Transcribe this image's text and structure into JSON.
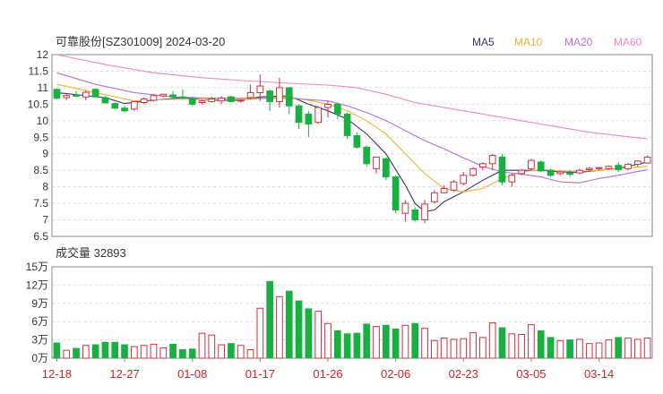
{
  "title": "可靠股份[SZ301009] 2024-03-20",
  "volume_label": "成交量 32893",
  "legend": [
    {
      "name": "MA5",
      "color": "#333366"
    },
    {
      "name": "MA10",
      "color": "#f0b030"
    },
    {
      "name": "MA20",
      "color": "#b070e0"
    },
    {
      "name": "MA60",
      "color": "#ee88c0"
    }
  ],
  "colors": {
    "up": "#d03040",
    "down": "#18b040",
    "grid": "#dcdcdc",
    "axis": "#888888"
  },
  "chart_data": [
    {
      "type": "candlestick",
      "ylim": [
        6.5,
        12
      ],
      "yticks": [
        "12",
        "11.5",
        "11",
        "10.5",
        "10",
        "9.5",
        "9",
        "8.5",
        "8",
        "7.5",
        "7",
        "6.5"
      ],
      "xticks": [
        {
          "index": 0,
          "label": "12-18"
        },
        {
          "index": 7,
          "label": "12-27"
        },
        {
          "index": 14,
          "label": "01-08"
        },
        {
          "index": 21,
          "label": "01-17"
        },
        {
          "index": 28,
          "label": "01-26"
        },
        {
          "index": 35,
          "label": "02-06"
        },
        {
          "index": 42,
          "label": "02-23"
        },
        {
          "index": 49,
          "label": "03-05"
        },
        {
          "index": 56,
          "label": "03-14"
        }
      ],
      "ohlc": [
        [
          10.95,
          10.98,
          10.65,
          10.68
        ],
        [
          10.7,
          10.82,
          10.62,
          10.76
        ],
        [
          10.78,
          10.9,
          10.72,
          10.74
        ],
        [
          10.72,
          10.92,
          10.62,
          10.86
        ],
        [
          10.95,
          10.98,
          10.7,
          10.72
        ],
        [
          10.7,
          10.75,
          10.52,
          10.54
        ],
        [
          10.52,
          10.56,
          10.35,
          10.38
        ],
        [
          10.38,
          10.45,
          10.25,
          10.3
        ],
        [
          10.35,
          10.6,
          10.3,
          10.58
        ],
        [
          10.55,
          10.7,
          10.5,
          10.66
        ],
        [
          10.62,
          10.8,
          10.58,
          10.76
        ],
        [
          10.75,
          10.82,
          10.7,
          10.8
        ],
        [
          10.78,
          10.9,
          10.66,
          10.72
        ],
        [
          10.72,
          10.95,
          10.65,
          10.68
        ],
        [
          10.68,
          10.72,
          10.45,
          10.5
        ],
        [
          10.55,
          10.64,
          10.5,
          10.6
        ],
        [
          10.58,
          10.72,
          10.55,
          10.66
        ],
        [
          10.6,
          10.75,
          10.5,
          10.68
        ],
        [
          10.72,
          10.76,
          10.55,
          10.58
        ],
        [
          10.6,
          10.65,
          10.55,
          10.62
        ],
        [
          10.7,
          11.1,
          10.65,
          10.85
        ],
        [
          10.85,
          11.4,
          10.6,
          11.05
        ],
        [
          10.9,
          10.95,
          10.3,
          10.58
        ],
        [
          10.58,
          11.3,
          10.4,
          11.0
        ],
        [
          11.0,
          11.02,
          10.2,
          10.45
        ],
        [
          10.45,
          10.5,
          9.75,
          9.95
        ],
        [
          10.2,
          10.3,
          9.5,
          9.9
        ],
        [
          9.95,
          10.45,
          9.9,
          10.4
        ],
        [
          10.4,
          10.6,
          10.1,
          10.5
        ],
        [
          10.5,
          10.55,
          10.05,
          10.2
        ],
        [
          10.2,
          10.25,
          9.45,
          9.55
        ],
        [
          9.55,
          9.65,
          9.15,
          9.2
        ],
        [
          9.2,
          9.25,
          8.62,
          8.7
        ],
        [
          8.55,
          8.9,
          8.4,
          8.9
        ],
        [
          8.85,
          8.9,
          8.2,
          8.3
        ],
        [
          8.3,
          8.35,
          7.2,
          7.3
        ],
        [
          7.2,
          7.6,
          6.95,
          7.5
        ],
        [
          7.3,
          7.38,
          6.95,
          7.0
        ],
        [
          7.0,
          7.6,
          6.9,
          7.48
        ],
        [
          7.55,
          7.9,
          7.5,
          7.82
        ],
        [
          7.82,
          8.05,
          7.8,
          7.95
        ],
        [
          7.9,
          8.2,
          7.85,
          8.15
        ],
        [
          8.1,
          8.45,
          8.05,
          8.35
        ],
        [
          8.35,
          8.6,
          8.3,
          8.55
        ],
        [
          8.6,
          8.75,
          8.5,
          8.7
        ],
        [
          8.7,
          9.0,
          8.5,
          8.95
        ],
        [
          8.9,
          9.0,
          8.05,
          8.15
        ],
        [
          8.15,
          8.4,
          8.0,
          8.35
        ],
        [
          8.4,
          8.55,
          8.35,
          8.5
        ],
        [
          8.55,
          8.85,
          8.5,
          8.8
        ],
        [
          8.75,
          8.8,
          8.45,
          8.48
        ],
        [
          8.5,
          8.55,
          8.3,
          8.35
        ],
        [
          8.4,
          8.5,
          8.35,
          8.45
        ],
        [
          8.42,
          8.5,
          8.3,
          8.38
        ],
        [
          8.42,
          8.55,
          8.38,
          8.5
        ],
        [
          8.52,
          8.6,
          8.48,
          8.56
        ],
        [
          8.55,
          8.6,
          8.5,
          8.58
        ],
        [
          8.55,
          8.65,
          8.52,
          8.62
        ],
        [
          8.65,
          8.75,
          8.45,
          8.52
        ],
        [
          8.55,
          8.72,
          8.5,
          8.68
        ],
        [
          8.68,
          8.8,
          8.6,
          8.78
        ],
        [
          8.72,
          8.95,
          8.7,
          8.9
        ]
      ],
      "ma": {
        "MA5": [
          [
            0,
            10.85
          ],
          [
            5,
            10.7
          ],
          [
            7,
            10.52
          ],
          [
            10,
            10.62
          ],
          [
            13,
            10.7
          ],
          [
            16,
            10.62
          ],
          [
            19,
            10.62
          ],
          [
            21,
            10.72
          ],
          [
            24,
            10.75
          ],
          [
            26,
            10.5
          ],
          [
            28,
            10.3
          ],
          [
            30,
            10.05
          ],
          [
            32,
            9.6
          ],
          [
            34,
            9.0
          ],
          [
            36,
            8.05
          ],
          [
            37,
            7.5
          ],
          [
            38,
            7.25
          ],
          [
            39,
            7.3
          ],
          [
            40,
            7.55
          ],
          [
            42,
            7.85
          ],
          [
            44,
            8.2
          ],
          [
            46,
            8.5
          ],
          [
            48,
            8.5
          ],
          [
            50,
            8.5
          ],
          [
            52,
            8.45
          ],
          [
            54,
            8.44
          ],
          [
            56,
            8.5
          ],
          [
            58,
            8.56
          ],
          [
            61,
            8.75
          ]
        ],
        "MA10": [
          [
            0,
            11.1
          ],
          [
            4,
            10.85
          ],
          [
            8,
            10.6
          ],
          [
            12,
            10.65
          ],
          [
            16,
            10.64
          ],
          [
            20,
            10.65
          ],
          [
            24,
            10.72
          ],
          [
            26,
            10.62
          ],
          [
            28,
            10.5
          ],
          [
            30,
            10.3
          ],
          [
            32,
            10.0
          ],
          [
            34,
            9.6
          ],
          [
            36,
            9.0
          ],
          [
            38,
            8.4
          ],
          [
            40,
            7.95
          ],
          [
            42,
            7.85
          ],
          [
            44,
            7.95
          ],
          [
            46,
            8.25
          ],
          [
            48,
            8.45
          ],
          [
            50,
            8.52
          ],
          [
            52,
            8.48
          ],
          [
            54,
            8.47
          ],
          [
            56,
            8.5
          ],
          [
            58,
            8.55
          ],
          [
            61,
            8.62
          ]
        ],
        "MA20": [
          [
            0,
            11.45
          ],
          [
            4,
            11.1
          ],
          [
            8,
            10.85
          ],
          [
            12,
            10.72
          ],
          [
            16,
            10.68
          ],
          [
            20,
            10.68
          ],
          [
            24,
            10.68
          ],
          [
            28,
            10.6
          ],
          [
            30,
            10.45
          ],
          [
            32,
            10.25
          ],
          [
            34,
            10.0
          ],
          [
            36,
            9.7
          ],
          [
            38,
            9.4
          ],
          [
            40,
            9.15
          ],
          [
            42,
            8.88
          ],
          [
            44,
            8.62
          ],
          [
            46,
            8.45
          ],
          [
            48,
            8.38
          ],
          [
            50,
            8.3
          ],
          [
            52,
            8.15
          ],
          [
            54,
            8.12
          ],
          [
            56,
            8.25
          ],
          [
            58,
            8.35
          ],
          [
            61,
            8.52
          ]
        ],
        "MA60": [
          [
            0,
            12.0
          ],
          [
            5,
            11.7
          ],
          [
            10,
            11.45
          ],
          [
            15,
            11.3
          ],
          [
            20,
            11.2
          ],
          [
            25,
            11.12
          ],
          [
            28,
            11.08
          ],
          [
            31,
            11.0
          ],
          [
            34,
            10.8
          ],
          [
            37,
            10.55
          ],
          [
            40,
            10.4
          ],
          [
            43,
            10.25
          ],
          [
            46,
            10.1
          ],
          [
            49,
            9.95
          ],
          [
            52,
            9.8
          ],
          [
            55,
            9.65
          ],
          [
            58,
            9.55
          ],
          [
            61,
            9.45
          ]
        ]
      }
    },
    {
      "type": "bar",
      "ylim": [
        0,
        150000
      ],
      "yticks": [
        "15万",
        "12万",
        "9万",
        "6万",
        "3万",
        "0万"
      ],
      "values": [
        25000,
        13000,
        16000,
        21000,
        22000,
        26000,
        26000,
        22000,
        19000,
        21000,
        23000,
        17000,
        23000,
        14000,
        15000,
        41000,
        38000,
        22000,
        24000,
        21000,
        14000,
        82000,
        126000,
        101000,
        110000,
        94000,
        81000,
        77000,
        57000,
        45000,
        40000,
        41000,
        56000,
        52000,
        54000,
        48000,
        54000,
        57000,
        49000,
        29000,
        33000,
        31000,
        32000,
        42000,
        34000,
        58000,
        50000,
        40000,
        39000,
        55000,
        45000,
        34000,
        29000,
        30000,
        31000,
        24000,
        25000,
        30000,
        34000,
        32893,
        31000,
        33000
      ]
    }
  ]
}
